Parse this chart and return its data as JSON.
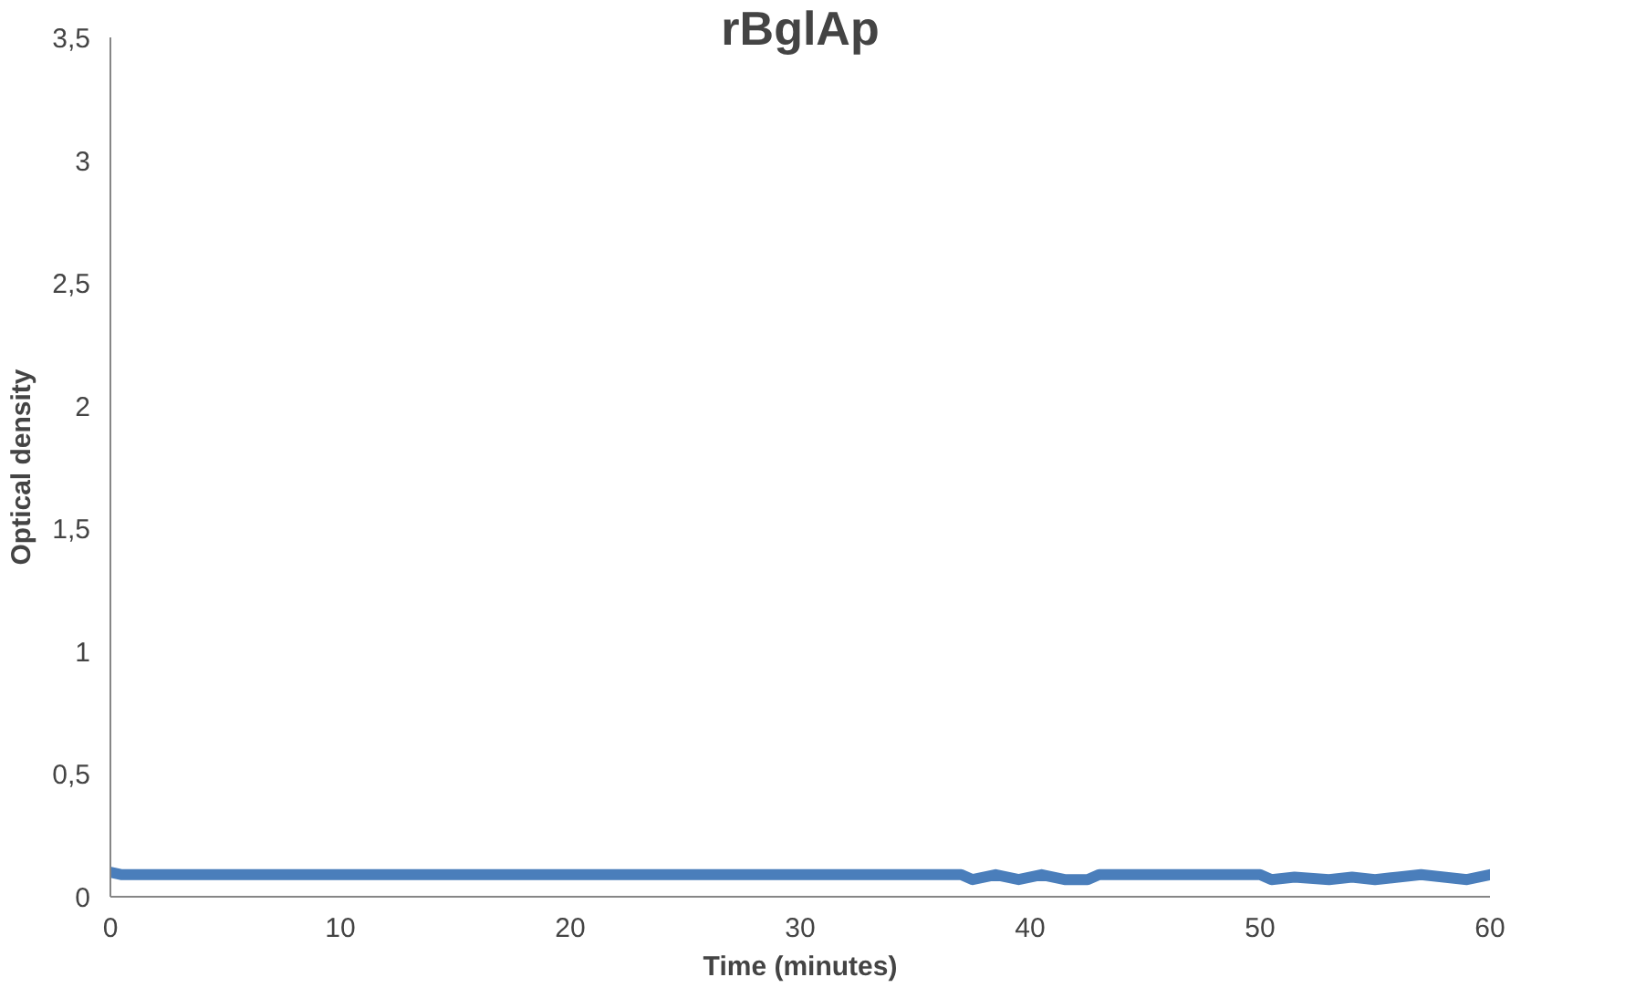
{
  "chart_data": {
    "type": "line",
    "title": "rBglAp",
    "xlabel": "Time (minutes)",
    "ylabel": "Optical density",
    "x": [
      0,
      0.5,
      37,
      37.5,
      38.5,
      39.5,
      40.5,
      41.5,
      42.5,
      43,
      50,
      50.5,
      51.5,
      53,
      54,
      55,
      56,
      57,
      58,
      59,
      60
    ],
    "series": [
      {
        "color": "#4a7ebb",
        "values": [
          0.1,
          0.09,
          0.09,
          0.07,
          0.09,
          0.07,
          0.09,
          0.07,
          0.07,
          0.09,
          0.09,
          0.07,
          0.08,
          0.07,
          0.08,
          0.07,
          0.08,
          0.09,
          0.08,
          0.07,
          0.09
        ]
      }
    ],
    "xlim": [
      0,
      60
    ],
    "xticks": [
      0,
      10,
      20,
      30,
      40,
      50,
      60
    ],
    "ylim": [
      0,
      3.5
    ],
    "yticks": [
      0,
      {
        "value": 0.5,
        "label": "0,5"
      },
      1,
      {
        "value": 1.5,
        "label": "1,5"
      },
      2,
      {
        "value": 2.5,
        "label": "2,5"
      },
      3,
      {
        "value": 3.5,
        "label": "3,5"
      }
    ],
    "grid": false,
    "marker": "none",
    "line_style": "solid"
  }
}
